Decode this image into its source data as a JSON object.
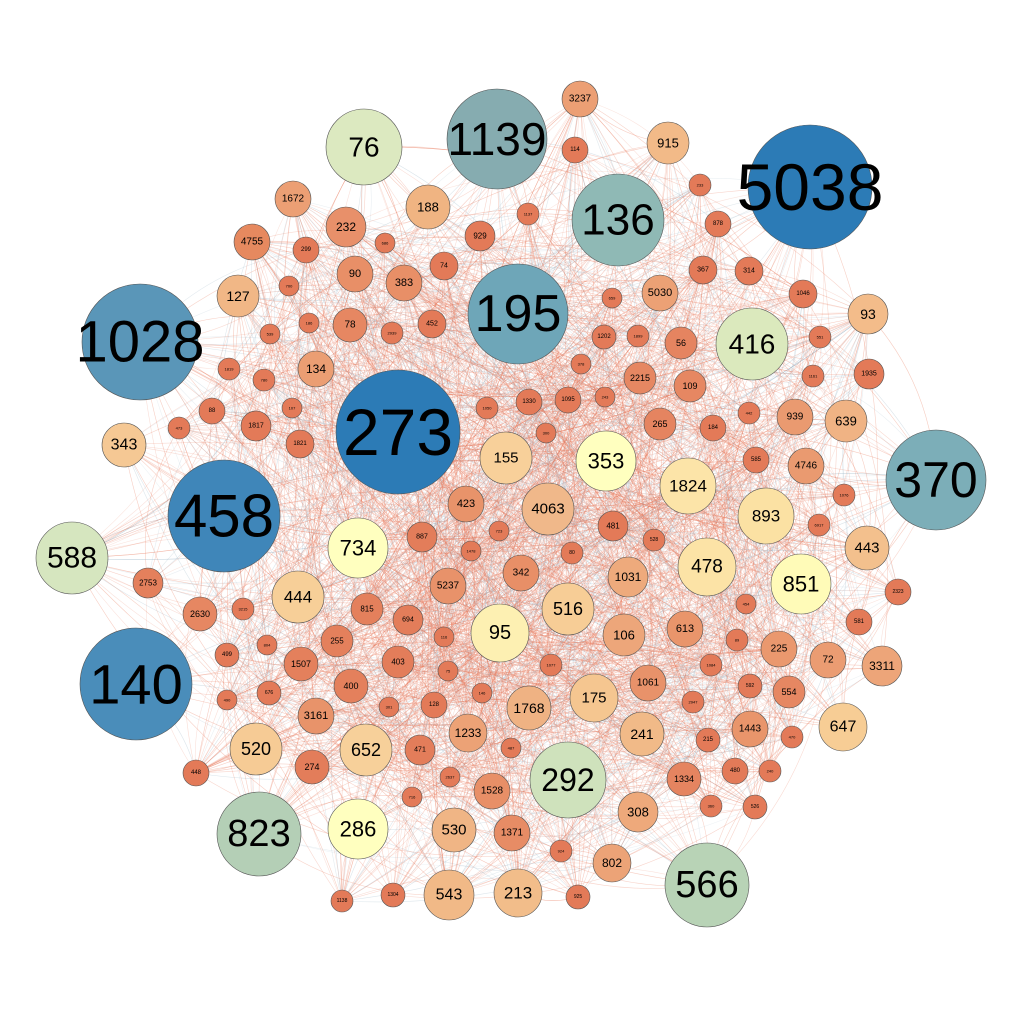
{
  "colors": {
    "edge_primary": "#e8785a",
    "edge_secondary": "#9fb8c8",
    "node_outline": "#555555"
  },
  "node_legend_note": "Nodes are colored on a diverging scale from red (low degree) through yellow to blue (high degree).",
  "nodes": [
    {
      "id": "5038",
      "color": "#2c7bb6"
    },
    {
      "id": "273",
      "color": "#2c7bb6"
    },
    {
      "id": "458",
      "color": "#3f86b9"
    },
    {
      "id": "140",
      "color": "#4a8dba"
    },
    {
      "id": "1028",
      "color": "#5a96b8"
    },
    {
      "id": "195",
      "color": "#6ea6b8"
    },
    {
      "id": "1139",
      "color": "#86acb0"
    },
    {
      "id": "370",
      "color": "#7caeb8"
    },
    {
      "id": "136",
      "color": "#8fb9b5"
    },
    {
      "id": "823",
      "color": "#b4cfb6"
    },
    {
      "id": "566",
      "color": "#b8d3b6"
    },
    {
      "id": "292",
      "color": "#cfe2bc"
    },
    {
      "id": "588",
      "color": "#d6e6bf"
    },
    {
      "id": "76",
      "color": "#dce9c0"
    },
    {
      "id": "416",
      "color": "#dbe9bd"
    },
    {
      "id": "353",
      "color": "#ffffbf"
    },
    {
      "id": "734",
      "color": "#ffffbf"
    },
    {
      "id": "286",
      "color": "#ffffbf"
    },
    {
      "id": "851",
      "color": "#fffbb8"
    },
    {
      "id": "95",
      "color": "#fdf0b2"
    },
    {
      "id": "478",
      "color": "#fce3a6"
    },
    {
      "id": "1824",
      "color": "#fce4a8"
    },
    {
      "id": "893",
      "color": "#fbe1a3"
    },
    {
      "id": "155",
      "color": "#f8d09a"
    },
    {
      "id": "516",
      "color": "#f7cd96"
    },
    {
      "id": "444",
      "color": "#f7cf98"
    },
    {
      "id": "652",
      "color": "#f7d09a"
    },
    {
      "id": "520",
      "color": "#f6cb95"
    },
    {
      "id": "175",
      "color": "#f5c690"
    },
    {
      "id": "647",
      "color": "#f7cd95"
    },
    {
      "id": "343",
      "color": "#f5c894"
    },
    {
      "id": "443",
      "color": "#f3c08d"
    },
    {
      "id": "4063",
      "color": "#f0b88a"
    },
    {
      "id": "543",
      "color": "#f1b987"
    },
    {
      "id": "213",
      "color": "#f2bd8a"
    },
    {
      "id": "530",
      "color": "#f0b585"
    },
    {
      "id": "241",
      "color": "#f1ba88"
    },
    {
      "id": "1768",
      "color": "#efb283"
    },
    {
      "id": "188",
      "color": "#f0b482"
    },
    {
      "id": "915",
      "color": "#f2ba88"
    },
    {
      "id": "127",
      "color": "#f1b786"
    },
    {
      "id": "93",
      "color": "#f3bc8a"
    },
    {
      "id": "639",
      "color": "#f0b384"
    },
    {
      "id": "1031",
      "color": "#eeaa7c"
    },
    {
      "id": "106",
      "color": "#eda67a"
    },
    {
      "id": "308",
      "color": "#eea97b"
    },
    {
      "id": "802",
      "color": "#eca377"
    },
    {
      "id": "1233",
      "color": "#eca276"
    },
    {
      "id": "3311",
      "color": "#eda579"
    },
    {
      "id": "5030",
      "color": "#eca175"
    },
    {
      "id": "134",
      "color": "#eb9e73"
    },
    {
      "id": "3237",
      "color": "#ec9f74"
    },
    {
      "id": "1672",
      "color": "#ec9f74"
    },
    {
      "id": "4746",
      "color": "#ea9a70"
    },
    {
      "id": "939",
      "color": "#ea9a70"
    },
    {
      "id": "225",
      "color": "#ea986e"
    },
    {
      "id": "72",
      "color": "#eb9c72"
    },
    {
      "id": "1443",
      "color": "#e9956b"
    },
    {
      "id": "613",
      "color": "#e9956b"
    },
    {
      "id": "1061",
      "color": "#e8926a"
    },
    {
      "id": "3161",
      "color": "#e8936a"
    },
    {
      "id": "423",
      "color": "#e8936a"
    },
    {
      "id": "5237",
      "color": "#e8926a"
    },
    {
      "id": "342",
      "color": "#e88f67"
    },
    {
      "id": "1528",
      "color": "#e88f67"
    },
    {
      "id": "1371",
      "color": "#e78c65"
    },
    {
      "id": "1334",
      "color": "#e58460"
    },
    {
      "id": "554",
      "color": "#e68762"
    },
    {
      "id": "109",
      "color": "#e68762"
    },
    {
      "id": "2215",
      "color": "#e68762"
    },
    {
      "id": "265",
      "color": "#e58460"
    },
    {
      "id": "56",
      "color": "#e58460"
    },
    {
      "id": "232",
      "color": "#e8906a"
    },
    {
      "id": "4755",
      "color": "#e6895f"
    },
    {
      "id": "90",
      "color": "#e88f67"
    },
    {
      "id": "383",
      "color": "#e88f67"
    },
    {
      "id": "78",
      "color": "#e68762"
    },
    {
      "id": "2630",
      "color": "#e68762"
    },
    {
      "id": "2753",
      "color": "#e4805c"
    },
    {
      "id": "1507",
      "color": "#e4805c"
    },
    {
      "id": "400",
      "color": "#e4805c"
    },
    {
      "id": "255",
      "color": "#e4805c"
    },
    {
      "id": "815",
      "color": "#e4805c"
    },
    {
      "id": "403",
      "color": "#e37d5a"
    },
    {
      "id": "694",
      "color": "#e37d5a"
    },
    {
      "id": "274",
      "color": "#e37d5a"
    },
    {
      "id": "471",
      "color": "#e37d5a"
    },
    {
      "id": "887",
      "color": "#e37d5a"
    },
    {
      "id": "481",
      "color": "#e37a58"
    },
    {
      "id": "367",
      "color": "#e37a58"
    },
    {
      "id": "314",
      "color": "#e37a58"
    },
    {
      "id": "929",
      "color": "#e37a58"
    },
    {
      "id": "74",
      "color": "#e37a58"
    },
    {
      "id": "452",
      "color": "#e37a58"
    },
    {
      "id": "1817",
      "color": "#e37a58"
    },
    {
      "id": "1821",
      "color": "#e37a58"
    },
    {
      "id": "299",
      "color": "#e37a58"
    },
    {
      "id": "88",
      "color": "#e37a58"
    },
    {
      "id": "585",
      "color": "#e37a58"
    },
    {
      "id": "184",
      "color": "#e37a58"
    },
    {
      "id": "480",
      "color": "#e37a58"
    },
    {
      "id": "581",
      "color": "#e37a58"
    },
    {
      "id": "1935",
      "color": "#e37a58"
    },
    {
      "id": "1046",
      "color": "#e37a58"
    },
    {
      "id": "878",
      "color": "#e37a58"
    },
    {
      "id": "114",
      "color": "#e37a58"
    },
    {
      "id": "1095",
      "color": "#e37a58"
    },
    {
      "id": "1330",
      "color": "#e37a58"
    },
    {
      "id": "1202",
      "color": "#e37a58"
    },
    {
      "id": "128",
      "color": "#e37a58"
    },
    {
      "id": "215",
      "color": "#e37a58"
    },
    {
      "id": "592",
      "color": "#e37a58"
    },
    {
      "id": "676",
      "color": "#e37a58"
    },
    {
      "id": "499",
      "color": "#e37a58"
    },
    {
      "id": "448",
      "color": "#e37a58"
    },
    {
      "id": "1138",
      "color": "#e37a58"
    },
    {
      "id": "1304",
      "color": "#e37a58"
    },
    {
      "id": "925",
      "color": "#e37a58"
    },
    {
      "id": "924",
      "color": "#e37a58"
    },
    {
      "id": "526",
      "color": "#e37a58"
    },
    {
      "id": "360",
      "color": "#e37a58"
    },
    {
      "id": "240",
      "color": "#e37a58"
    },
    {
      "id": "470",
      "color": "#e37a58"
    },
    {
      "id": "2947",
      "color": "#e37a58"
    },
    {
      "id": "1084",
      "color": "#e37a58"
    },
    {
      "id": "89",
      "color": "#e37a58"
    },
    {
      "id": "454",
      "color": "#e37a58"
    },
    {
      "id": "6917",
      "color": "#e37a58"
    },
    {
      "id": "1076",
      "color": "#e37a58"
    },
    {
      "id": "2323",
      "color": "#e37a58"
    },
    {
      "id": "442",
      "color": "#e37a58"
    },
    {
      "id": "1161",
      "color": "#e37a58"
    },
    {
      "id": "551",
      "color": "#e37a58"
    },
    {
      "id": "243",
      "color": "#e37a58"
    },
    {
      "id": "378",
      "color": "#e37a58"
    },
    {
      "id": "1899",
      "color": "#e37a58"
    },
    {
      "id": "659",
      "color": "#e37a58"
    },
    {
      "id": "233",
      "color": "#e37a58"
    },
    {
      "id": "1137",
      "color": "#e37a58"
    },
    {
      "id": "686",
      "color": "#e37a58"
    },
    {
      "id": "700",
      "color": "#e37a58"
    },
    {
      "id": "539",
      "color": "#e37a58"
    },
    {
      "id": "186",
      "color": "#e37a58"
    },
    {
      "id": "2939",
      "color": "#e37a58"
    },
    {
      "id": "1819",
      "color": "#e37a58"
    },
    {
      "id": "780",
      "color": "#e37a58"
    },
    {
      "id": "107",
      "color": "#e37a58"
    },
    {
      "id": "473",
      "color": "#e37a58"
    },
    {
      "id": "1050",
      "color": "#e37a58"
    },
    {
      "id": "300",
      "color": "#e37a58"
    },
    {
      "id": "723",
      "color": "#e37a58"
    },
    {
      "id": "1478",
      "color": "#e37a58"
    },
    {
      "id": "80",
      "color": "#e37a58"
    },
    {
      "id": "528",
      "color": "#e37a58"
    },
    {
      "id": "116",
      "color": "#e37a58"
    },
    {
      "id": "75",
      "color": "#e37a58"
    },
    {
      "id": "146",
      "color": "#e37a58"
    },
    {
      "id": "1077",
      "color": "#e37a58"
    },
    {
      "id": "3215",
      "color": "#e37a58"
    },
    {
      "id": "804",
      "color": "#e37a58"
    },
    {
      "id": "490",
      "color": "#e37a58"
    },
    {
      "id": "301",
      "color": "#e37a58"
    },
    {
      "id": "487",
      "color": "#e37a58"
    },
    {
      "id": "2637",
      "color": "#e37a58"
    },
    {
      "id": "716",
      "color": "#e37a58"
    }
  ]
}
